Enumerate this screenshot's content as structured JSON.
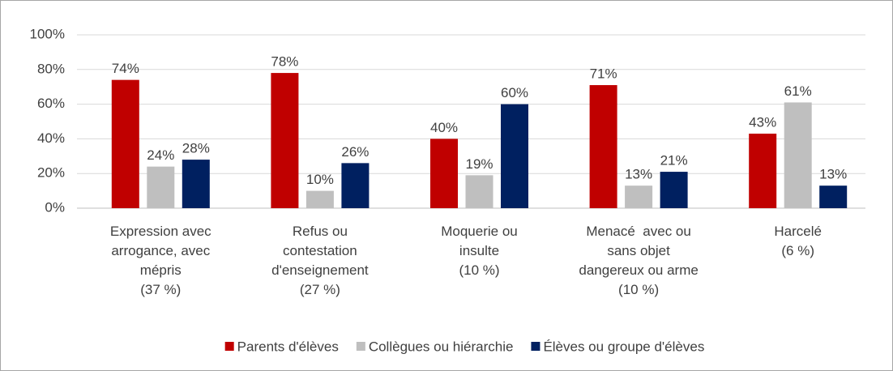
{
  "chart_data": {
    "type": "bar",
    "categories": [
      [
        "Expression avec",
        "arrogance, avec",
        "mépris",
        "(37 %)"
      ],
      [
        "Refus ou",
        "contestation",
        "d'enseignement",
        "(27 %)"
      ],
      [
        "Moquerie ou",
        "insulte",
        "(10 %)"
      ],
      [
        "Menacé  avec ou",
        "sans objet",
        "dangereux ou arme",
        "(10 %)"
      ],
      [
        "Harcelé",
        "(6 %)"
      ]
    ],
    "series": [
      {
        "name": "Parents d'élèves",
        "color": "#c00000",
        "values": [
          74,
          78,
          40,
          71,
          43
        ],
        "value_labels": [
          "74%",
          "78%",
          "40%",
          "71%",
          "43%"
        ]
      },
      {
        "name": "Collègues ou hiérarchie",
        "color": "#bfbfbf",
        "values": [
          24,
          10,
          19,
          13,
          61
        ],
        "value_labels": [
          "24%",
          "10%",
          "19%",
          "13%",
          "61%"
        ]
      },
      {
        "name": "Élèves ou groupe d'élèves",
        "color": "#002060",
        "values": [
          28,
          26,
          60,
          21,
          13
        ],
        "value_labels": [
          "28%",
          "26%",
          "60%",
          "21%",
          "13%"
        ]
      }
    ],
    "label_colors": [
      "#c00000",
      "#a6a6a6",
      "#002060"
    ],
    "ylim": [
      0,
      100
    ],
    "yticks": [
      {
        "value": 0,
        "label": "0%"
      },
      {
        "value": 20,
        "label": "20%"
      },
      {
        "value": 40,
        "label": "40%"
      },
      {
        "value": 60,
        "label": "60%"
      },
      {
        "value": 80,
        "label": "80%"
      },
      {
        "value": 100,
        "label": "100%"
      }
    ],
    "grid": true,
    "legend": "bottom"
  }
}
